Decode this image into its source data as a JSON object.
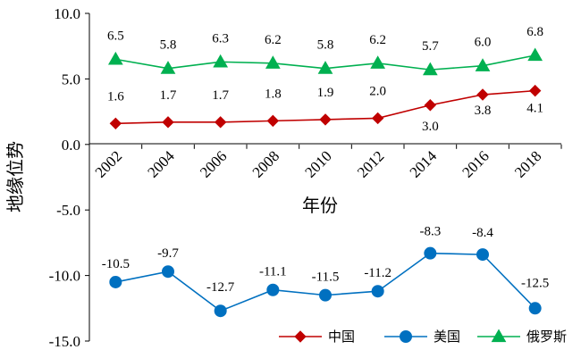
{
  "chart_data": {
    "type": "line",
    "x": [
      "2002",
      "2004",
      "2006",
      "2008",
      "2010",
      "2012",
      "2014",
      "2016",
      "2018"
    ],
    "xlabel": "年份",
    "ylabel": "地缘位势",
    "yticks": [
      "10.0",
      "5.0",
      "0.0",
      "-5.0",
      "-10.0",
      "-15.0"
    ],
    "ylim": [
      -15,
      10
    ],
    "grid": false,
    "legend_position": "bottom-right",
    "series": [
      {
        "name": "中国",
        "color": "#c00000",
        "marker": "diamond",
        "values": [
          1.6,
          1.7,
          1.7,
          1.8,
          1.9,
          2.0,
          3.0,
          3.8,
          4.1
        ],
        "labels": [
          "1.6",
          "1.7",
          "1.7",
          "1.8",
          "1.9",
          "2.0",
          "3.0",
          "3.8",
          "4.1"
        ]
      },
      {
        "name": "美国",
        "color": "#0070c0",
        "marker": "circle",
        "values": [
          -10.5,
          -9.7,
          -12.7,
          -11.1,
          -11.5,
          -11.2,
          -8.3,
          -8.4,
          -12.5
        ],
        "labels": [
          "-10.5",
          "-9.7",
          "-12.7",
          "-11.1",
          "-11.5",
          "-11.2",
          "-8.3",
          "-8.4",
          "-12.5"
        ]
      },
      {
        "name": "俄罗斯",
        "color": "#00b050",
        "marker": "triangle",
        "values": [
          6.5,
          5.8,
          6.3,
          6.2,
          5.8,
          6.2,
          5.7,
          6.0,
          6.8
        ],
        "labels": [
          "6.5",
          "5.8",
          "6.3",
          "6.2",
          "5.8",
          "6.2",
          "5.7",
          "6.0",
          "6.8"
        ]
      }
    ]
  }
}
